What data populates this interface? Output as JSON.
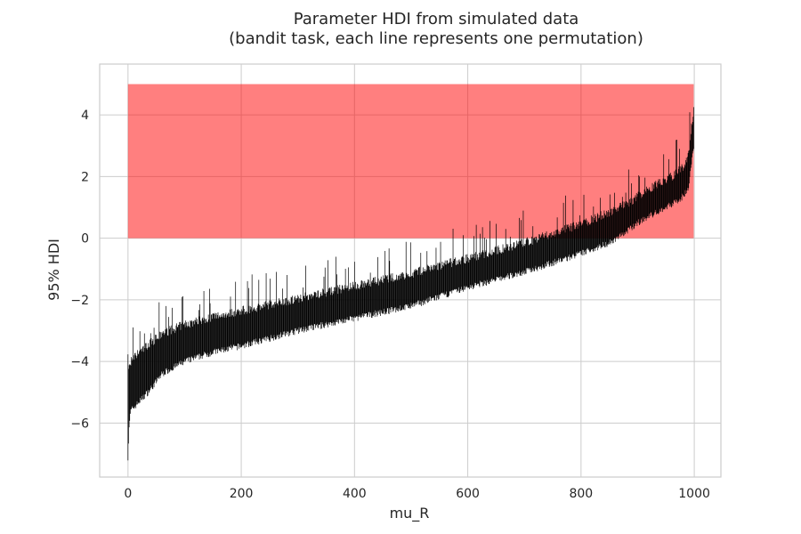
{
  "chart_data": {
    "type": "errorbar",
    "title_line1": "Parameter HDI from simulated data",
    "title_line2": "(bandit task, each line represents one permutation)",
    "xlabel": "mu_R",
    "ylabel": "95% HDI",
    "xlim": [
      -50,
      1047
    ],
    "ylim": [
      -7.75,
      5.65
    ],
    "x_ticks": [
      0,
      200,
      400,
      600,
      800,
      1000
    ],
    "y_ticks": [
      -6,
      -4,
      -2,
      0,
      2,
      4
    ],
    "grid": true,
    "shaded_region": {
      "x0": 0,
      "x1": 999,
      "y0": 0,
      "y1": 5,
      "color": "#ff0000",
      "opacity": 0.5
    },
    "n_permutations": 1000,
    "series": {
      "x": [
        0,
        2,
        5,
        10,
        20,
        40,
        60,
        100,
        150,
        200,
        250,
        300,
        350,
        400,
        450,
        500,
        550,
        600,
        650,
        700,
        750,
        800,
        850,
        880,
        900,
        930,
        960,
        980,
        990,
        995,
        999
      ],
      "lower": [
        -7.1,
        -6.1,
        -5.6,
        -5.5,
        -5.3,
        -4.9,
        -4.4,
        -4.0,
        -3.7,
        -3.5,
        -3.25,
        -3.0,
        -2.8,
        -2.6,
        -2.4,
        -2.2,
        -1.9,
        -1.6,
        -1.35,
        -1.1,
        -0.8,
        -0.5,
        -0.15,
        0.2,
        0.5,
        0.8,
        1.1,
        1.35,
        1.65,
        2.4,
        3.0
      ],
      "upper": [
        -4.3,
        -4.2,
        -4.0,
        -3.9,
        -3.7,
        -3.4,
        -3.1,
        -2.8,
        -2.55,
        -2.35,
        -2.15,
        -1.95,
        -1.75,
        -1.55,
        -1.35,
        -1.15,
        -0.9,
        -0.65,
        -0.4,
        -0.15,
        0.15,
        0.45,
        0.85,
        1.1,
        1.35,
        1.7,
        2.0,
        2.3,
        2.7,
        3.6,
        4.15
      ]
    }
  }
}
